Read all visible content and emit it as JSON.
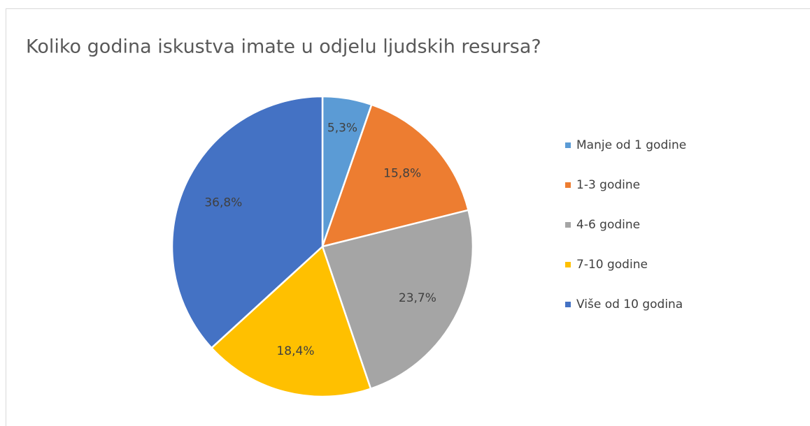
{
  "chart_data": {
    "type": "pie",
    "title": "Koliko godina iskustva imate u odjelu ljudskih resursa?",
    "categories": [
      "Manje od 1 godine",
      "1-3 godine",
      "4-6 godine",
      "7-10 godine",
      "Više od 10 godina"
    ],
    "values": [
      5.3,
      15.8,
      23.7,
      18.4,
      36.8
    ],
    "value_labels": [
      "5,3%",
      "15,8%",
      "23,7%",
      "18,4%",
      "36,8%"
    ],
    "colors": [
      "#5b9bd5",
      "#ed7d31",
      "#a5a5a5",
      "#ffc000",
      "#4472c4"
    ],
    "legend": "right"
  }
}
